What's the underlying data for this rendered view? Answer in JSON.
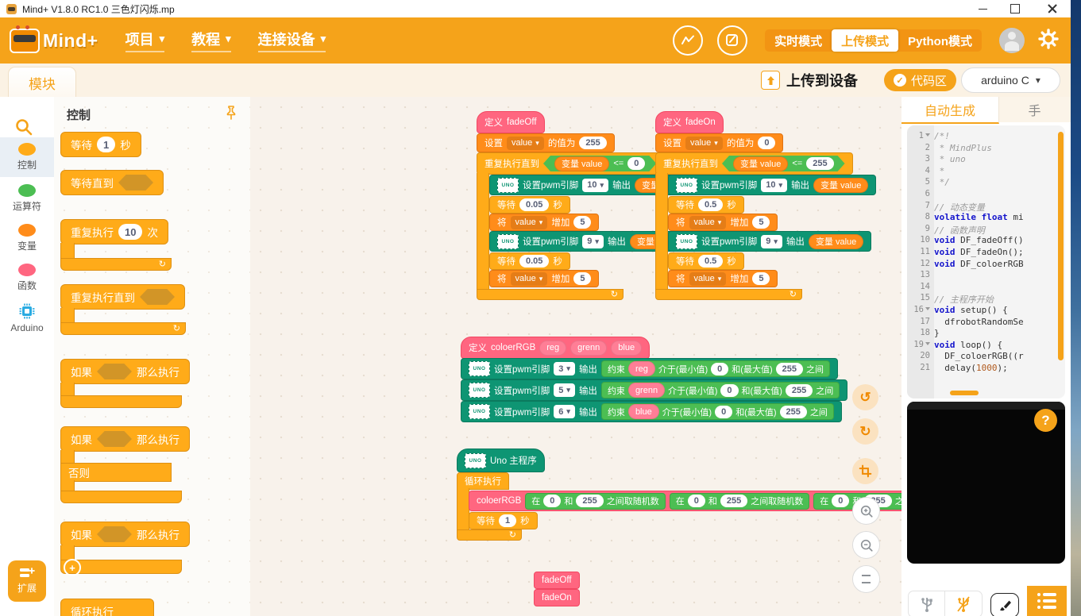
{
  "colors": {
    "brand": "#F5A31A",
    "control": "#FFAB19",
    "variables": "#FF8C1A",
    "functions": "#FF6680",
    "operators": "#4CBE53",
    "arduino_teal": "#0E9573",
    "arduino_cat": "#29ABE2"
  },
  "titlebar": {
    "title": "Mind+ V1.8.0 RC1.0  三色灯闪烁.mp"
  },
  "toolbar": {
    "logo": "Mind+",
    "menu_project": "项目",
    "menu_tutorial": "教程",
    "menu_connect": "连接设备",
    "mode_realtime": "实时模式",
    "mode_upload": "上传模式",
    "mode_python": "Python模式"
  },
  "subheader": {
    "module_tab": "模块",
    "upload_label": "上传到设备",
    "code_area_label": "代码区",
    "board_label": "arduino C"
  },
  "sidebar": {
    "cat_control": "控制",
    "cat_operators": "运算符",
    "cat_variables": "变量",
    "cat_functions": "函数",
    "cat_arduino": "Arduino",
    "extension": "扩展"
  },
  "palette": {
    "header": "控制",
    "wait": "等待",
    "wait_value": "1",
    "seconds": "秒",
    "wait_until": "等待直到",
    "repeat": "重复执行",
    "repeat_value": "10",
    "times": "次",
    "repeat_until": "重复执行直到",
    "if_label": "如果",
    "then_label": "那么执行",
    "else_label": "否则",
    "forever": "循环执行"
  },
  "blocks": {
    "define": "定义",
    "set": "设置",
    "value_of": "的值为",
    "repeat_until": "重复执行直到",
    "var_reporter": "变量 value",
    "var_value": "value",
    "le": "<=",
    "pwm": "设置pwm引脚",
    "output": "输出",
    "wait": "等待",
    "seconds": "秒",
    "change": "将",
    "increase": "增加",
    "forever": "循环执行",
    "uno": "UNO",
    "uno_main": "Uno 主程序",
    "constrain": "约束",
    "between": "介于(最小值)",
    "and_max": "和(最大值)",
    "range_end": "之间",
    "rand_in": "在",
    "rand_and": "和",
    "rand_suffix": "之间取随机数"
  },
  "fade_off": {
    "name": "fadeOff",
    "init": "255",
    "limit": "0",
    "pin1": "10",
    "pin2": "9",
    "wait": "0.05",
    "step": "5"
  },
  "fade_on": {
    "name": "fadeOn",
    "init": "0",
    "limit": "255",
    "pin1": "10",
    "pin2": "9",
    "wait": "0.5",
    "step": "5"
  },
  "color_fn": {
    "name": "coloerRGB",
    "p1": "reg",
    "p2": "grenn",
    "p3": "blue",
    "r1": {
      "pin": "3",
      "param": "reg",
      "min": "0",
      "max": "255"
    },
    "r2": {
      "pin": "5",
      "param": "grenn",
      "min": "0",
      "max": "255"
    },
    "r3": {
      "pin": "6",
      "param": "blue",
      "min": "0",
      "max": "255"
    }
  },
  "main_prog": {
    "rand_min": "0",
    "rand_max": "255",
    "wait": "1"
  },
  "loose": {
    "b1": "fadeOff",
    "b2": "fadeOn"
  },
  "code_panel": {
    "tab_active": "自动生成",
    "tab_next": "手",
    "lines": [
      {
        "n": "1",
        "fold": true,
        "seg": [
          {
            "c": "cm",
            "t": "/*!"
          }
        ]
      },
      {
        "n": "2",
        "seg": [
          {
            "c": "cm",
            "t": " * MindPlus"
          }
        ]
      },
      {
        "n": "3",
        "seg": [
          {
            "c": "cm",
            "t": " * uno"
          }
        ]
      },
      {
        "n": "4",
        "seg": [
          {
            "c": "cm",
            "t": " *"
          }
        ]
      },
      {
        "n": "5",
        "seg": [
          {
            "c": "cm",
            "t": " */"
          }
        ]
      },
      {
        "n": "6",
        "seg": []
      },
      {
        "n": "7",
        "seg": [
          {
            "c": "cm",
            "t": "// 动态变量"
          }
        ]
      },
      {
        "n": "8",
        "seg": [
          {
            "c": "kw",
            "t": "volatile"
          },
          {
            "c": "tx",
            "t": " "
          },
          {
            "c": "kw",
            "t": "float"
          },
          {
            "c": "tx",
            "t": " mi"
          }
        ]
      },
      {
        "n": "9",
        "seg": [
          {
            "c": "cm",
            "t": "// 函数声明"
          }
        ]
      },
      {
        "n": "10",
        "seg": [
          {
            "c": "kw",
            "t": "void"
          },
          {
            "c": "tx",
            "t": " DF_fadeOff()"
          }
        ]
      },
      {
        "n": "11",
        "seg": [
          {
            "c": "kw",
            "t": "void"
          },
          {
            "c": "tx",
            "t": " DF_fadeOn();"
          }
        ]
      },
      {
        "n": "12",
        "seg": [
          {
            "c": "kw",
            "t": "void"
          },
          {
            "c": "tx",
            "t": " DF_coloerRGB"
          }
        ]
      },
      {
        "n": "13",
        "seg": []
      },
      {
        "n": "14",
        "seg": []
      },
      {
        "n": "15",
        "seg": [
          {
            "c": "cm",
            "t": "// 主程序开始"
          }
        ]
      },
      {
        "n": "16",
        "fold": true,
        "seg": [
          {
            "c": "kw",
            "t": "void"
          },
          {
            "c": "tx",
            "t": " setup() {"
          }
        ]
      },
      {
        "n": "17",
        "seg": [
          {
            "c": "tx",
            "t": "  dfrobotRandomSe"
          }
        ]
      },
      {
        "n": "18",
        "seg": [
          {
            "c": "tx",
            "t": "}"
          }
        ]
      },
      {
        "n": "19",
        "fold": true,
        "seg": [
          {
            "c": "kw",
            "t": "void"
          },
          {
            "c": "tx",
            "t": " loop() {"
          }
        ]
      },
      {
        "n": "20",
        "seg": [
          {
            "c": "tx",
            "t": "  DF_coloerRGB((r"
          }
        ]
      },
      {
        "n": "21",
        "seg": [
          {
            "c": "tx",
            "t": "  delay("
          },
          {
            "c": "num",
            "t": "1000"
          },
          {
            "c": "tx",
            "t": ");"
          }
        ]
      }
    ]
  },
  "misc": {
    "help": "?"
  }
}
